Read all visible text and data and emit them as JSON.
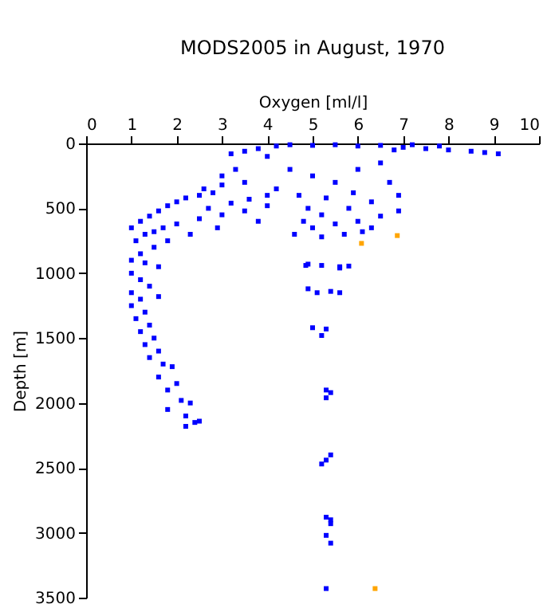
{
  "chart_data": {
    "type": "scatter",
    "title": "MODS2005 in August, 1970",
    "xlabel": "Oxygen [ml/l]",
    "ylabel": "Depth [m]",
    "xlim": [
      0,
      10
    ],
    "xticks": [
      0,
      1,
      2,
      3,
      4,
      5,
      6,
      7,
      8,
      9,
      10
    ],
    "ylim": [
      3500,
      0
    ],
    "yticks": [
      0,
      500,
      1000,
      1500,
      2000,
      2500,
      3000,
      3500
    ],
    "grid": false,
    "legend": false,
    "marker": "square",
    "series": [
      {
        "color": "#0000ff",
        "x": [
          4.2,
          4.5,
          5,
          5.5,
          6,
          6.5,
          7,
          7.5,
          8,
          8.5,
          9.1,
          8.8,
          7.2,
          7.8,
          6.8,
          3.2,
          3.5,
          3.8,
          4.0,
          4.5,
          5,
          5.5,
          6,
          6.5,
          6.7,
          6.9,
          6.3,
          5.8,
          5.2,
          4.8,
          5.0,
          5.5,
          6.0,
          6.5,
          6.9,
          4.2,
          4.7,
          5.3,
          5.9,
          4.9,
          5.7,
          5.2,
          6.1,
          4.6,
          6.3,
          4.85,
          5.6,
          4.9,
          5.2,
          5.6,
          5.8,
          4.9,
          5.1,
          5.4,
          5.6,
          5.0,
          5.3,
          5.2,
          5.3,
          5.4,
          5.3,
          5.4,
          5.3,
          5.2,
          5.3,
          5.4,
          5.4,
          5.3,
          5.4,
          5.3,
          3.5,
          3.0,
          2.8,
          2.5,
          2.2,
          2.0,
          1.8,
          1.6,
          1.4,
          1.2,
          1.0,
          1.3,
          1.1,
          1.5,
          2.0,
          2.5,
          3.0,
          3.5,
          4.0,
          3.8,
          3.2,
          2.7,
          2.3,
          1.8,
          1.5,
          1.2,
          3.3,
          3.0,
          2.6,
          4.0,
          3.6,
          2.9,
          1.7,
          1.0,
          1.3,
          1.6,
          1.0,
          1.2,
          1.4,
          1.0,
          1.2,
          1.6,
          1.0,
          1.3,
          1.1,
          1.4,
          1.2,
          1.5,
          1.3,
          1.6,
          1.4,
          1.7,
          1.9,
          1.6,
          2.0,
          1.8,
          2.1,
          2.3,
          1.8,
          2.2,
          2.4,
          2.5,
          2.2
        ],
        "values": [
          20,
          10,
          15,
          10,
          20,
          15,
          30,
          40,
          50,
          60,
          80,
          70,
          10,
          20,
          50,
          80,
          60,
          40,
          100,
          200,
          250,
          300,
          200,
          150,
          300,
          400,
          450,
          500,
          550,
          600,
          650,
          620,
          600,
          560,
          520,
          350,
          400,
          420,
          380,
          500,
          700,
          720,
          680,
          700,
          650,
          940,
          960,
          930,
          940,
          950,
          945,
          1120,
          1150,
          1140,
          1150,
          1420,
          1430,
          1480,
          1900,
          1920,
          1960,
          2400,
          2440,
          2470,
          2880,
          2900,
          2930,
          3020,
          3080,
          3430,
          300,
          320,
          380,
          400,
          420,
          450,
          480,
          520,
          560,
          600,
          650,
          700,
          750,
          680,
          620,
          580,
          550,
          520,
          480,
          600,
          460,
          500,
          700,
          750,
          800,
          850,
          200,
          250,
          350,
          400,
          430,
          650,
          650,
          900,
          920,
          950,
          1000,
          1050,
          1100,
          1150,
          1200,
          1180,
          1250,
          1300,
          1350,
          1400,
          1450,
          1500,
          1550,
          1600,
          1650,
          1700,
          1720,
          1800,
          1850,
          1900,
          1980,
          2000,
          2050,
          2100,
          2150,
          2140,
          2180
        ]
      },
      {
        "color": "#ffa500",
        "x": [
          6.08,
          6.87,
          6.38
        ],
        "values": [
          770,
          710,
          3430
        ]
      }
    ]
  }
}
